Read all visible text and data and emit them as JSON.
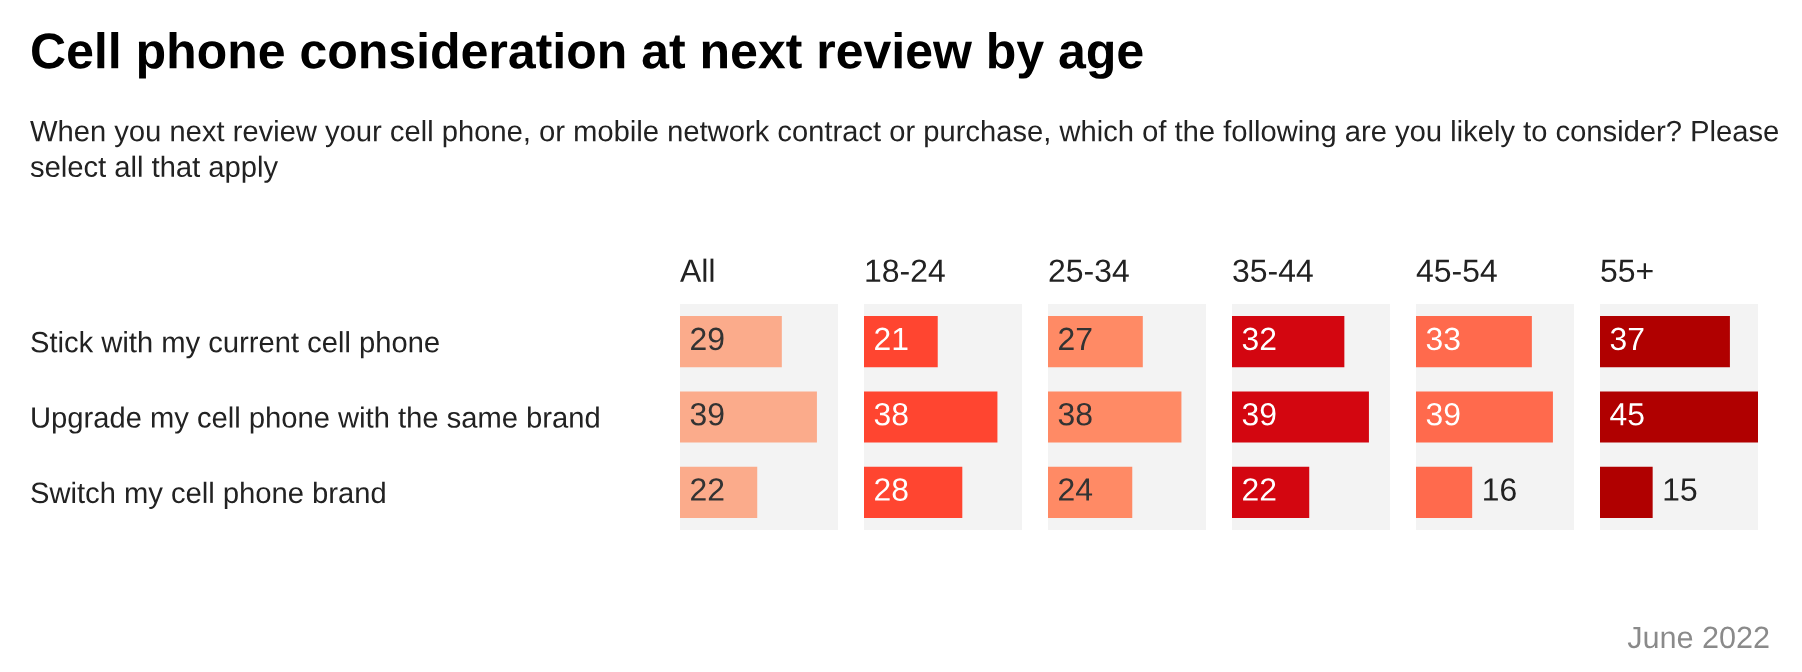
{
  "chart_data": [
    {
      "type": "bar",
      "orientation": "horizontal",
      "title": "Cell phone consideration at next review by age",
      "subtitle": "When you next review your cell phone, or mobile network contract or purchase, which of the following are you likely to consider? Please select all that apply",
      "xlabel": "All",
      "categories": [
        "Stick with my current cell phone",
        "Upgrade my cell phone with the same brand",
        "Switch my cell phone brand"
      ],
      "values": [
        29,
        39,
        22
      ],
      "color": "#fbab8b",
      "xlim": [
        0,
        45
      ],
      "data_labels": true,
      "tick_labels": "y",
      "grid": false,
      "legend": false
    },
    {
      "type": "bar",
      "orientation": "horizontal",
      "xlabel": "18-24",
      "values": [
        21,
        38,
        28
      ],
      "color": "#ff4530",
      "xlim": [
        0,
        45
      ],
      "data_labels": true,
      "tick_labels": false,
      "grid": false,
      "legend": false
    },
    {
      "type": "bar",
      "orientation": "horizontal",
      "xlabel": "25-34",
      "values": [
        27,
        38,
        24
      ],
      "color": "#ff8a65",
      "xlim": [
        0,
        45
      ],
      "data_labels": true,
      "tick_labels": false,
      "grid": false,
      "legend": false
    },
    {
      "type": "bar",
      "orientation": "horizontal",
      "xlabel": "35-44",
      "values": [
        32,
        39,
        22
      ],
      "color": "#d30610",
      "xlim": [
        0,
        45
      ],
      "data_labels": true,
      "tick_labels": false,
      "grid": false,
      "legend": false
    },
    {
      "type": "bar",
      "orientation": "horizontal",
      "xlabel": "45-54",
      "values": [
        33,
        39,
        16
      ],
      "color": "#ff6a4d",
      "xlim": [
        0,
        45
      ],
      "data_labels": true,
      "tick_labels": false,
      "grid": false,
      "legend": false
    },
    {
      "type": "bar",
      "orientation": "horizontal",
      "xlabel": "55+",
      "values": [
        37,
        45,
        15
      ],
      "color": "#b00000",
      "xlim": [
        0,
        45
      ],
      "data_labels": true,
      "tick_labels": false,
      "grid": false,
      "legend": false,
      "annotations": [
        "June 2022"
      ]
    }
  ]
}
